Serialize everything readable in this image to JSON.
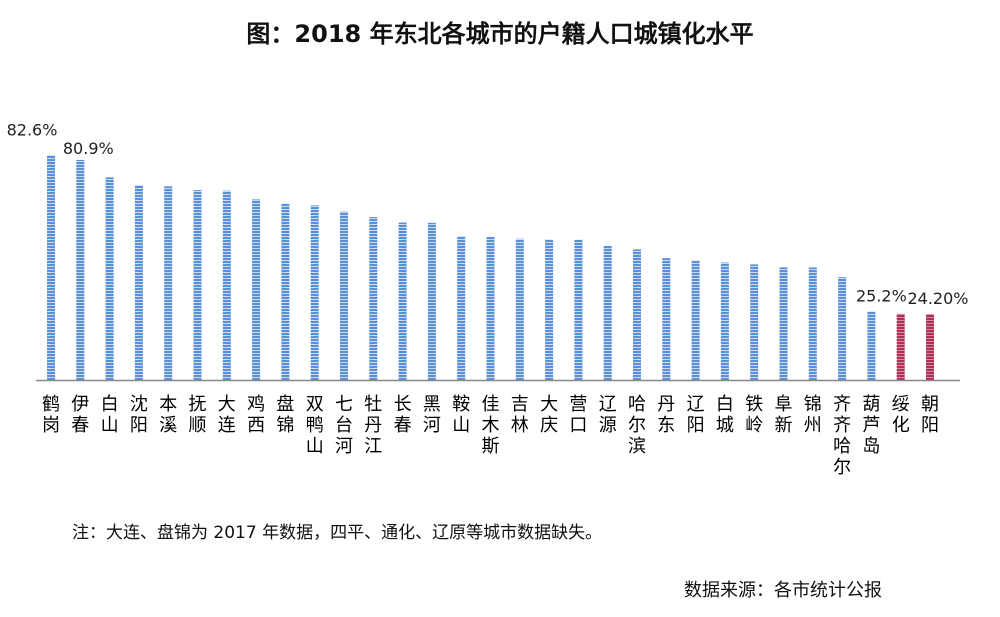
{
  "title": "图：2018 年东北各城市的户籍人口城镇化水平",
  "note": "注：大连、盘锦为 2017 年数据，四平、通化、辽原等城市数据缺失。",
  "source": "数据来源：各市统计公报",
  "colors": {
    "normal": "#5b8fd6",
    "highlight": "#b02f57",
    "axis": "#888888"
  },
  "chart_data": {
    "type": "bar",
    "categories": [
      "鹤岗",
      "伊春",
      "白山",
      "沈阳",
      "本溪",
      "抚顺",
      "大连",
      "鸡西",
      "盘锦",
      "双鸭山",
      "七台河",
      "牡丹江",
      "长春",
      "黑河",
      "鞍山",
      "佳木斯",
      "吉林",
      "大庆",
      "营口",
      "辽源",
      "哈尔滨",
      "丹东",
      "辽阳",
      "白城",
      "铁岭",
      "阜新",
      "锦州",
      "齐齐哈尔",
      "葫芦岛",
      "绥化",
      "朝阳"
    ],
    "values": [
      82.6,
      80.9,
      74.5,
      71.6,
      71.2,
      69.8,
      69.6,
      66.4,
      64.9,
      64.2,
      61.9,
      59.9,
      57.9,
      57.8,
      52.8,
      52.6,
      51.9,
      51.7,
      51.6,
      49.3,
      48.0,
      44.8,
      43.9,
      43.2,
      42.5,
      41.4,
      41.4,
      37.8,
      25.2,
      24.3,
      24.2
    ],
    "data_labels": [
      {
        "index": 0,
        "text": "82.6%"
      },
      {
        "index": 1,
        "text": "80.9%"
      },
      {
        "index": 28,
        "text": "25.2%"
      },
      {
        "index": 30,
        "text": "24.20%"
      }
    ],
    "highlight_indices": [
      29,
      30
    ],
    "ylim": [
      0,
      100
    ],
    "grid": false,
    "legend": "none"
  }
}
